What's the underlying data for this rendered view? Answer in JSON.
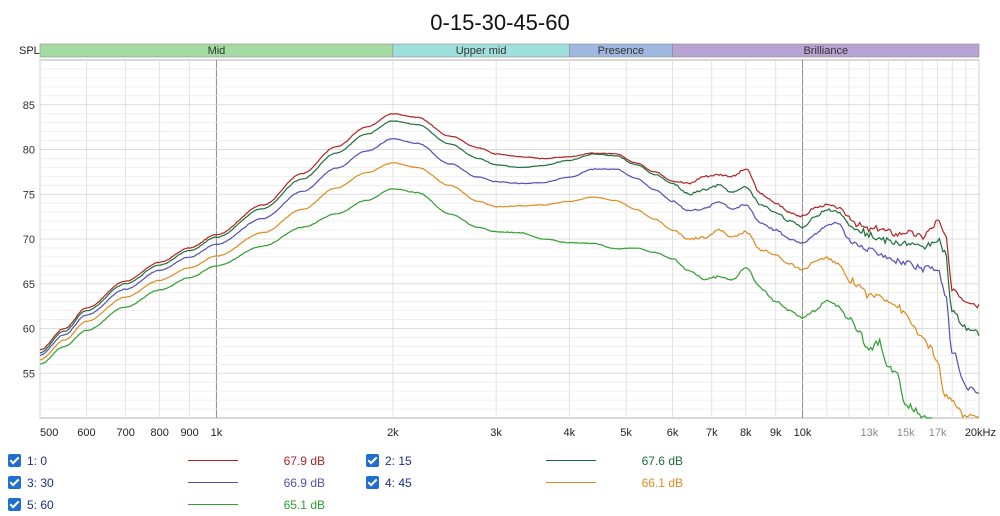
{
  "chart_data": {
    "type": "line",
    "title": "0-15-30-45-60",
    "ylabel": "SPL",
    "xlabel": "",
    "x_scale": "log",
    "xlim": [
      500,
      20000
    ],
    "ylim": [
      50,
      90
    ],
    "grid": true,
    "x_tick_labels": [
      {
        "value": 500,
        "label": "500"
      },
      {
        "value": 600,
        "label": "600"
      },
      {
        "value": 700,
        "label": "700"
      },
      {
        "value": 800,
        "label": "800"
      },
      {
        "value": 900,
        "label": "900"
      },
      {
        "value": 1000,
        "label": "1k"
      },
      {
        "value": 2000,
        "label": "2k"
      },
      {
        "value": 3000,
        "label": "3k"
      },
      {
        "value": 4000,
        "label": "4k"
      },
      {
        "value": 5000,
        "label": "5k"
      },
      {
        "value": 6000,
        "label": "6k"
      },
      {
        "value": 7000,
        "label": "7k"
      },
      {
        "value": 8000,
        "label": "8k"
      },
      {
        "value": 9000,
        "label": "9k"
      },
      {
        "value": 10000,
        "label": "10k"
      },
      {
        "value": 13000,
        "label": "13k"
      },
      {
        "value": 15000,
        "label": "15k"
      },
      {
        "value": 17000,
        "label": "17k"
      },
      {
        "value": 20000,
        "label": "20kHz"
      }
    ],
    "y_ticks": [
      55,
      60,
      65,
      70,
      75,
      80,
      85
    ],
    "bands": [
      {
        "name": "Mid",
        "from": 500,
        "to": 2000,
        "color": "#a3dba3"
      },
      {
        "name": "Upper mid",
        "from": 2000,
        "to": 4000,
        "color": "#9fe0dc"
      },
      {
        "name": "Presence",
        "from": 4000,
        "to": 6000,
        "color": "#a0b8e0"
      },
      {
        "name": "Brilliance",
        "from": 6000,
        "to": 20000,
        "color": "#b9a3d3"
      }
    ],
    "x": [
      500,
      550,
      600,
      700,
      800,
      900,
      1000,
      1200,
      1400,
      1600,
      1800,
      2000,
      2200,
      2500,
      2800,
      3000,
      3300,
      3600,
      4000,
      4400,
      4800,
      5200,
      5600,
      6000,
      6400,
      6800,
      7200,
      7600,
      8000,
      8500,
      9000,
      9500,
      10000,
      10500,
      11000,
      11500,
      12000,
      12500,
      13000,
      13500,
      14000,
      14500,
      15000,
      15500,
      16000,
      16500,
      17000,
      17500,
      18000,
      19000,
      20000
    ],
    "series": [
      {
        "name": "1: 0",
        "color": "#b22222",
        "legend_value": "67.9 dB",
        "values": [
          57.6,
          60.0,
          62.3,
          65.3,
          67.4,
          69.0,
          70.5,
          73.8,
          77.3,
          80.3,
          82.5,
          84.0,
          83.6,
          81.5,
          80.2,
          79.5,
          79.2,
          79.0,
          79.2,
          79.6,
          79.5,
          78.5,
          77.5,
          76.5,
          76.2,
          77.0,
          77.2,
          77.0,
          77.8,
          75.0,
          74.0,
          73.0,
          72.5,
          73.5,
          73.8,
          73.5,
          72.5,
          71.5,
          71.0,
          71.2,
          70.8,
          70.5,
          70.8,
          70.5,
          70.2,
          71.0,
          72.0,
          70.5,
          64.5,
          63.2,
          62.6
        ]
      },
      {
        "name": "2: 15",
        "color": "#1e6e3a",
        "legend_value": "67.6 dB",
        "values": [
          57.3,
          59.7,
          62.0,
          65.0,
          67.1,
          68.7,
          70.2,
          73.4,
          76.7,
          79.6,
          81.7,
          83.2,
          82.8,
          80.6,
          79.0,
          78.3,
          78.0,
          78.2,
          78.8,
          79.5,
          79.3,
          78.3,
          77.2,
          76.2,
          75.0,
          75.5,
          76.0,
          75.2,
          75.8,
          73.8,
          73.0,
          72.0,
          71.3,
          72.5,
          73.3,
          73.0,
          71.8,
          71.0,
          70.5,
          70.0,
          69.8,
          69.5,
          69.6,
          69.3,
          69.0,
          69.5,
          70.0,
          68.5,
          61.8,
          60.0,
          59.5
        ]
      },
      {
        "name": "3: 30",
        "color": "#5050b8",
        "legend_value": "66.9 dB",
        "values": [
          57.0,
          59.3,
          61.5,
          64.4,
          66.5,
          68.0,
          69.4,
          72.3,
          75.3,
          77.9,
          79.8,
          81.2,
          80.7,
          78.4,
          76.9,
          76.4,
          76.2,
          76.3,
          76.9,
          77.8,
          77.8,
          76.8,
          75.5,
          74.2,
          73.2,
          73.4,
          74.2,
          73.4,
          73.8,
          71.8,
          71.0,
          70.0,
          69.6,
          70.5,
          71.5,
          71.8,
          70.0,
          69.2,
          68.7,
          68.5,
          68.0,
          67.5,
          67.3,
          67.0,
          66.5,
          66.8,
          66.5,
          64.0,
          57.5,
          53.5,
          52.8
        ]
      },
      {
        "name": "4: 45",
        "color": "#e08a1e",
        "legend_value": "66.1 dB",
        "values": [
          56.5,
          58.7,
          60.8,
          63.5,
          65.4,
          66.8,
          68.1,
          70.7,
          73.3,
          75.7,
          77.4,
          78.5,
          78.0,
          76.0,
          74.2,
          73.6,
          73.7,
          73.8,
          74.2,
          74.7,
          74.3,
          73.3,
          72.2,
          71.0,
          70.0,
          70.2,
          71.0,
          70.2,
          70.8,
          68.8,
          68.2,
          67.2,
          66.5,
          67.5,
          67.9,
          67.2,
          65.5,
          64.8,
          63.6,
          63.7,
          63.2,
          62.5,
          61.5,
          60.2,
          58.8,
          58.0,
          56.0,
          52.5,
          51.8,
          50.2,
          49.8
        ]
      },
      {
        "name": "5: 60",
        "color": "#2e9e2e",
        "legend_value": "65.1 dB",
        "values": [
          56.0,
          58.0,
          59.8,
          62.4,
          64.3,
          65.7,
          67.0,
          69.2,
          71.3,
          72.8,
          74.3,
          75.6,
          75.2,
          72.8,
          71.3,
          70.8,
          70.7,
          70.0,
          69.6,
          69.5,
          68.9,
          69.0,
          68.5,
          67.8,
          66.5,
          65.5,
          65.8,
          65.5,
          66.8,
          64.5,
          63.0,
          62.0,
          61.2,
          62.0,
          63.2,
          62.5,
          61.0,
          59.5,
          57.5,
          58.5,
          55.5,
          55.0,
          51.5,
          51.0,
          50.3,
          49.8,
          49.0,
          48.5,
          48.2,
          48.0,
          47.8
        ]
      }
    ]
  }
}
